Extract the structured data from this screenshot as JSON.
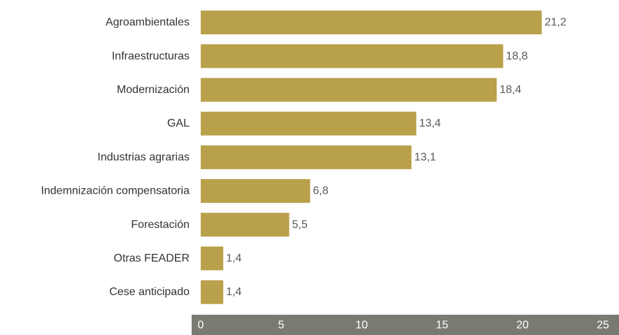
{
  "chart_data": {
    "type": "bar",
    "orientation": "horizontal",
    "categories": [
      "Agroambientales",
      "Infraestructuras",
      "Modernización",
      "GAL",
      "Industrias agrarias",
      "Indemnización compensatoria",
      "Forestación",
      "Otras FEADER",
      "Cese anticipado"
    ],
    "values": [
      21.2,
      18.8,
      18.4,
      13.4,
      13.1,
      6.8,
      5.5,
      1.4,
      1.4
    ],
    "value_labels": [
      "21,2",
      "18,8",
      "18,4",
      "13,4",
      "13,1",
      "6,8",
      "5,5",
      "1,4",
      "1,4"
    ],
    "xlim": [
      0,
      25
    ],
    "xticks": [
      0,
      5,
      10,
      15,
      20,
      25
    ],
    "xtick_labels": [
      "0",
      "5",
      "10",
      "15",
      "20",
      "25"
    ],
    "title": "",
    "xlabel": "",
    "ylabel": "",
    "grid": false,
    "legend": "none",
    "colors": {
      "bar": "#b9a04a",
      "axis_band": "#7a7a72",
      "tick_text": "#ffffff",
      "category_text": "#333333",
      "value_text": "#595959"
    }
  }
}
